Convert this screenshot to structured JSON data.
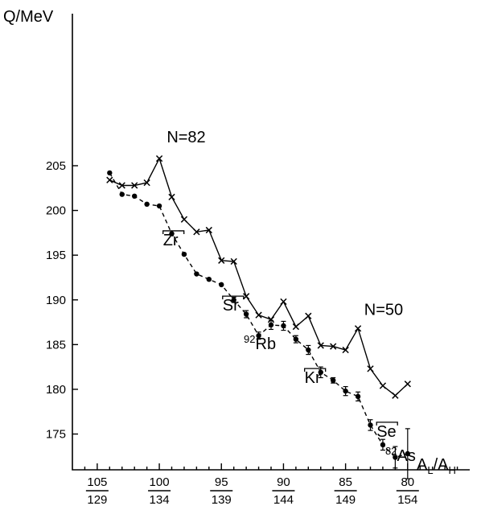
{
  "chart_data": {
    "type": "line",
    "ylabel": "Q/MeV",
    "xlabel": "A_L/A_H",
    "xlabel_main": "A",
    "xlabel_sub1": "L",
    "xlabel_sep": "/A",
    "xlabel_sub2": "H",
    "xlim": [
      107,
      75
    ],
    "ylim": [
      171,
      222
    ],
    "y_ticks": [
      175,
      180,
      185,
      190,
      195,
      200,
      205
    ],
    "y_tick_labels": [
      "175",
      "180",
      "185",
      "190",
      "195",
      "200",
      "205"
    ],
    "x_ticks": [
      {
        "x": 105,
        "top": "105",
        "bottom": "129"
      },
      {
        "x": 100,
        "top": "100",
        "bottom": "134"
      },
      {
        "x": 95,
        "top": "95",
        "bottom": "139"
      },
      {
        "x": 90,
        "top": "90",
        "bottom": "144"
      },
      {
        "x": 85,
        "top": "85",
        "bottom": "149"
      },
      {
        "x": 80,
        "top": "80",
        "bottom": "154"
      }
    ],
    "series": [
      {
        "marker": "x",
        "style": "solid",
        "points": [
          [
            104.0,
            203.4
          ],
          [
            103.0,
            202.8
          ],
          [
            102.0,
            202.8
          ],
          [
            101.0,
            203.1
          ],
          [
            100.0,
            205.8
          ],
          [
            99.0,
            201.5
          ],
          [
            98.0,
            199.0
          ],
          [
            97.0,
            197.6
          ],
          [
            96.0,
            197.8
          ],
          [
            95.0,
            194.4
          ],
          [
            94.0,
            194.3
          ],
          [
            93.0,
            190.4
          ],
          [
            92.0,
            188.3
          ],
          [
            91.0,
            187.8
          ],
          [
            90.0,
            189.8
          ],
          [
            89.0,
            187.0
          ],
          [
            88.0,
            188.2
          ],
          [
            87.0,
            184.9
          ],
          [
            86.0,
            184.8
          ],
          [
            85.0,
            184.4
          ],
          [
            84.0,
            186.8
          ],
          [
            83.0,
            182.3
          ],
          [
            82.0,
            180.4
          ],
          [
            81.0,
            179.3
          ],
          [
            80.0,
            180.6
          ]
        ]
      },
      {
        "marker": "dot",
        "style": "dashed",
        "points": [
          [
            104.0,
            204.2,
            0
          ],
          [
            103.0,
            201.8,
            0
          ],
          [
            102.0,
            201.6,
            0
          ],
          [
            101.0,
            200.7,
            0
          ],
          [
            100.0,
            200.5,
            0
          ],
          [
            99.0,
            197.4,
            0
          ],
          [
            98.0,
            195.1,
            0
          ],
          [
            97.0,
            192.9,
            0
          ],
          [
            96.0,
            192.3,
            0
          ],
          [
            95.0,
            191.7,
            0
          ],
          [
            94.0,
            190.0,
            0.3
          ],
          [
            93.0,
            188.4,
            0.4
          ],
          [
            92.0,
            186.0,
            0.4
          ],
          [
            91.0,
            187.2,
            0.5
          ],
          [
            90.0,
            187.1,
            0.5
          ],
          [
            89.0,
            185.6,
            0.4
          ],
          [
            88.0,
            184.4,
            0.5
          ],
          [
            87.0,
            181.9,
            0.6
          ],
          [
            86.0,
            181.0,
            0.3
          ],
          [
            85.0,
            179.8,
            0.5
          ],
          [
            84.0,
            179.2,
            0.5
          ],
          [
            83.0,
            176.0,
            0.6
          ],
          [
            82.0,
            173.8,
            0.6
          ],
          [
            81.0,
            172.4,
            1.2
          ],
          [
            80.0,
            172.8,
            2.8
          ]
        ]
      }
    ],
    "annotations": [
      {
        "text": "N=82",
        "x": 99.4,
        "y": 207.6
      },
      {
        "text": "N=50",
        "x": 83.5,
        "y": 188.3
      },
      {
        "text": "Zr",
        "x": 99.7,
        "y": 196.1,
        "bracket": true
      },
      {
        "text": "Sr",
        "x": 94.9,
        "y": 188.8,
        "bracket": true
      },
      {
        "text": "Kr",
        "x": 88.3,
        "y": 180.7,
        "bracket": true
      },
      {
        "text": "Se",
        "x": 82.5,
        "y": 174.7,
        "bracket": true
      },
      {
        "text": "Rb",
        "sup": "92",
        "x": 93.2,
        "y": 184.5
      },
      {
        "text": "As",
        "sup": "82",
        "x": 81.8,
        "y": 172.0
      }
    ]
  }
}
